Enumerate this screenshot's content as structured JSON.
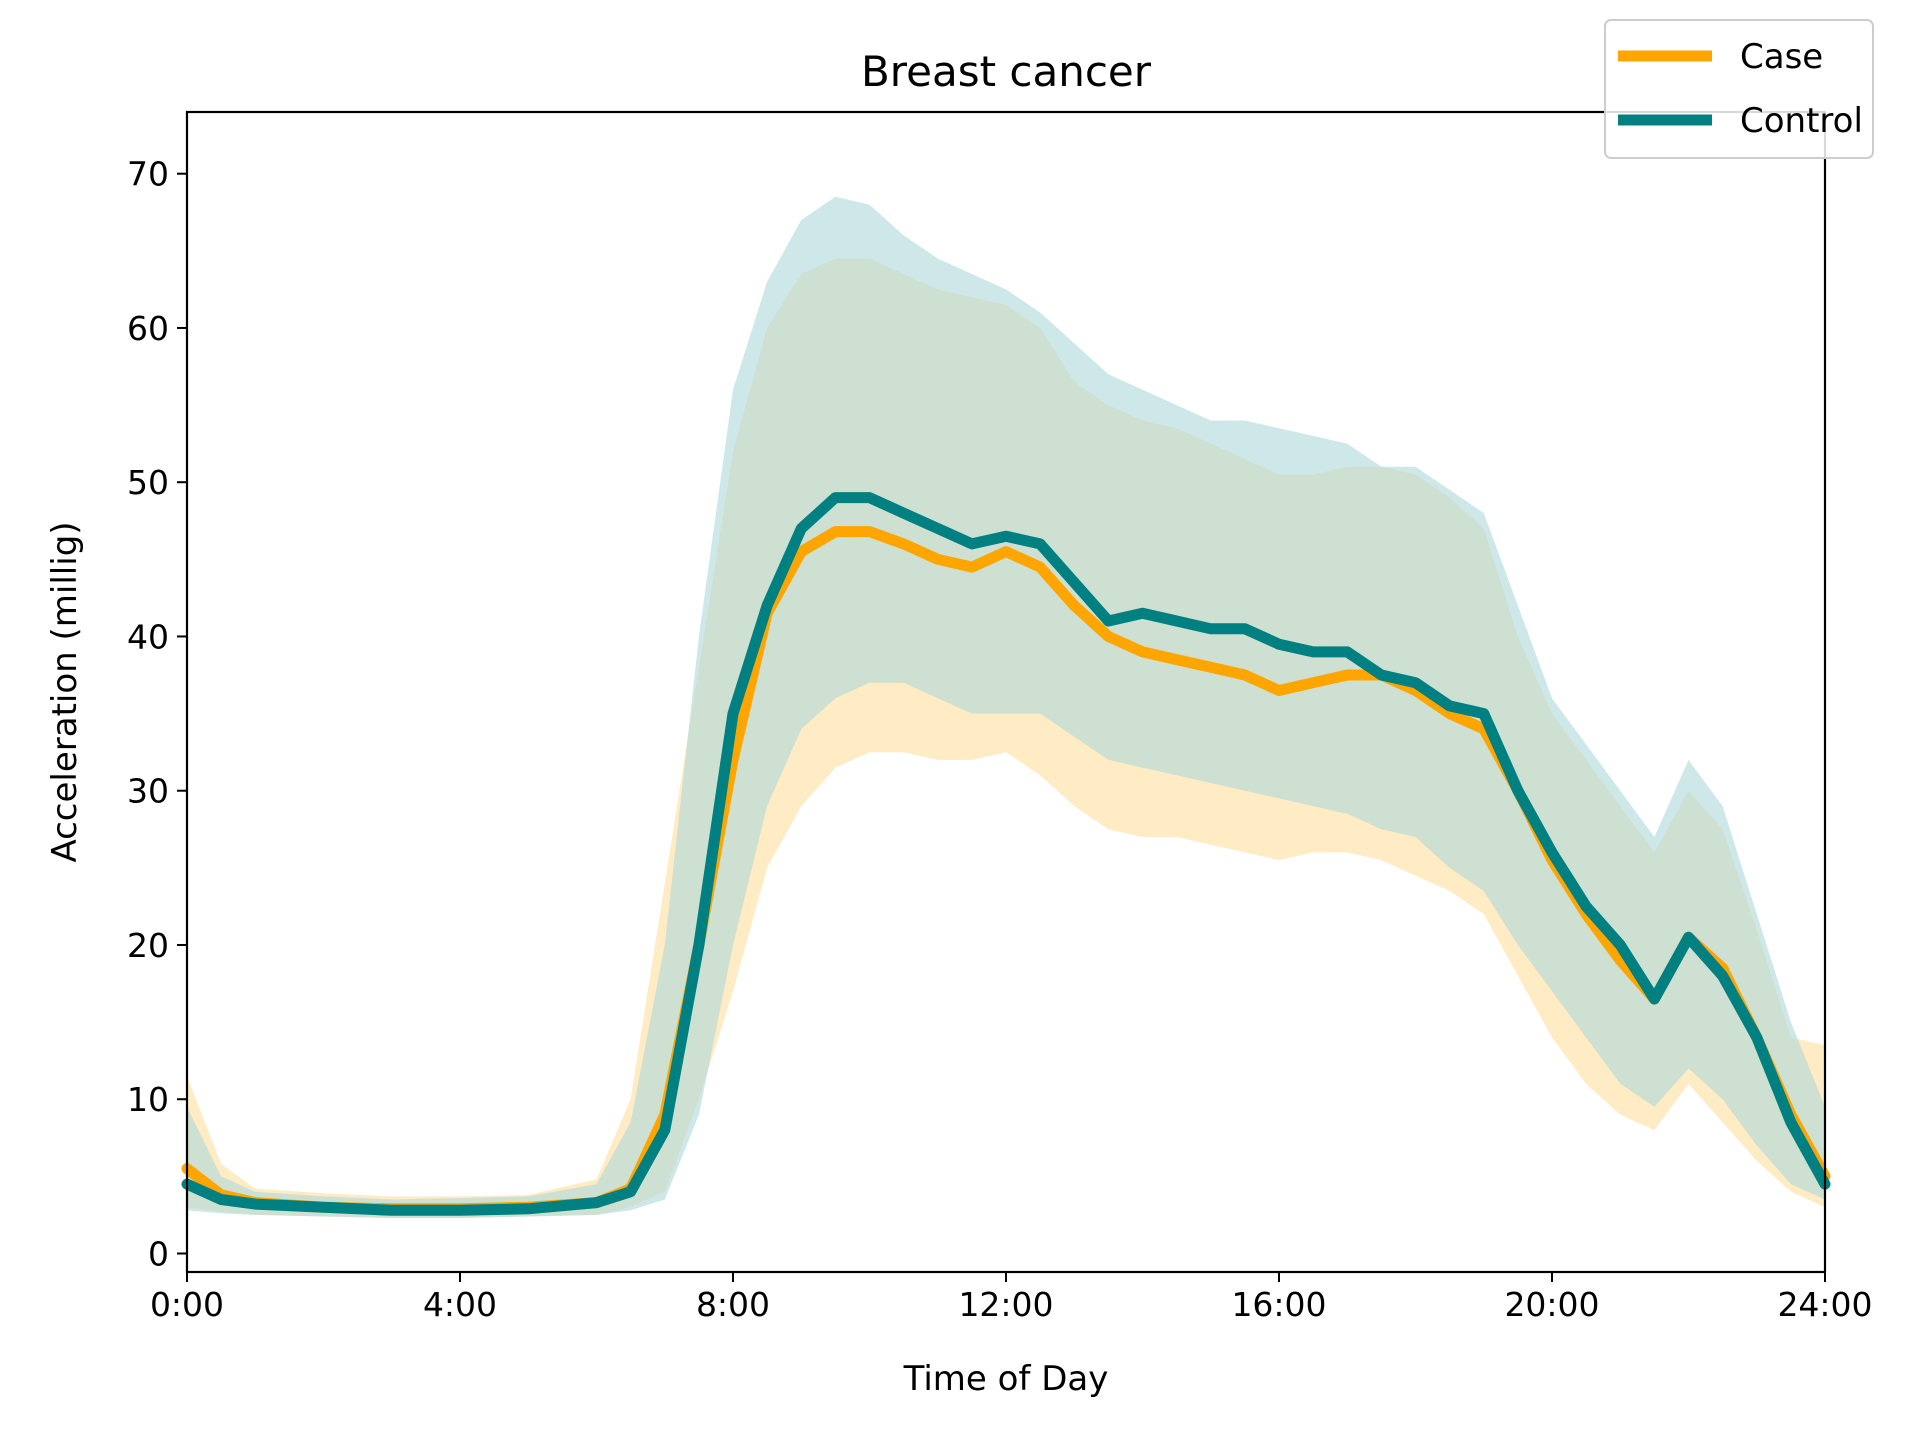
{
  "chart_data": {
    "type": "line",
    "title": "Breast cancer",
    "xlabel": "Time of Day",
    "ylabel": "Acceleration (millig)",
    "xlim": [
      0,
      24
    ],
    "ylim": [
      -1.2,
      74
    ],
    "x_ticks": [
      {
        "value": 0,
        "label": "0:00"
      },
      {
        "value": 4,
        "label": "4:00"
      },
      {
        "value": 8,
        "label": "8:00"
      },
      {
        "value": 12,
        "label": "12:00"
      },
      {
        "value": 16,
        "label": "16:00"
      },
      {
        "value": 20,
        "label": "20:00"
      },
      {
        "value": 24,
        "label": "24:00"
      }
    ],
    "y_ticks": [
      0,
      10,
      20,
      30,
      40,
      50,
      60,
      70
    ],
    "grid": false,
    "legend_position": "top-right",
    "x_hours": [
      0,
      0.5,
      1,
      2,
      3,
      4,
      5,
      6,
      6.5,
      7,
      7.5,
      8,
      8.5,
      9,
      9.5,
      10,
      10.5,
      11,
      11.5,
      12,
      12.5,
      13,
      13.5,
      14,
      14.5,
      15,
      15.5,
      16,
      16.5,
      17,
      17.5,
      18,
      18.5,
      19,
      19.5,
      20,
      20.5,
      21,
      21.5,
      22,
      22.5,
      23,
      23.5,
      24
    ],
    "series": [
      {
        "name": "Case",
        "color": "#FFA500",
        "band_color": "#FFE4B0",
        "mean": [
          5.5,
          3.8,
          3.3,
          3.0,
          2.9,
          2.9,
          3.0,
          3.3,
          4.2,
          9.0,
          20.0,
          32.0,
          41.5,
          45.5,
          46.8,
          46.8,
          46.0,
          45.0,
          44.5,
          45.5,
          44.5,
          42.0,
          40.0,
          39.0,
          38.5,
          38.0,
          37.5,
          36.5,
          37.0,
          37.5,
          37.5,
          36.5,
          35.0,
          34.0,
          30.0,
          25.5,
          22.0,
          19.0,
          16.5,
          20.5,
          18.5,
          14.0,
          9.0,
          5.0
        ],
        "upper": [
          11.5,
          5.8,
          4.2,
          3.9,
          3.7,
          3.7,
          3.8,
          4.8,
          10.0,
          24.0,
          38.0,
          52.0,
          60.0,
          63.5,
          64.5,
          64.5,
          63.5,
          62.5,
          62.0,
          61.5,
          60.0,
          56.5,
          55.0,
          54.0,
          53.5,
          52.5,
          51.5,
          50.5,
          50.5,
          51.0,
          51.0,
          50.5,
          49.0,
          47.0,
          40.0,
          35.0,
          32.0,
          29.0,
          26.0,
          30.0,
          27.5,
          21.0,
          14.0,
          13.5
        ],
        "lower": [
          3.0,
          2.7,
          2.5,
          2.4,
          2.3,
          2.3,
          2.4,
          2.5,
          3.0,
          4.0,
          10.0,
          17.0,
          25.0,
          29.0,
          31.5,
          32.5,
          32.5,
          32.0,
          32.0,
          32.5,
          31.0,
          29.0,
          27.5,
          27.0,
          27.0,
          26.5,
          26.0,
          25.5,
          26.0,
          26.0,
          25.5,
          24.5,
          23.5,
          22.0,
          18.0,
          14.0,
          11.0,
          9.0,
          8.0,
          11.0,
          8.5,
          6.0,
          4.0,
          3.0
        ]
      },
      {
        "name": "Control",
        "color": "#008080",
        "band_color": "#AED8DA",
        "mean": [
          4.5,
          3.5,
          3.2,
          3.0,
          2.8,
          2.8,
          2.9,
          3.3,
          4.0,
          8.0,
          20.0,
          35.0,
          42.0,
          47.0,
          49.0,
          49.0,
          48.0,
          47.0,
          46.0,
          46.5,
          46.0,
          43.5,
          41.0,
          41.5,
          41.0,
          40.5,
          40.5,
          39.5,
          39.0,
          39.0,
          37.5,
          37.0,
          35.5,
          35.0,
          30.0,
          26.0,
          22.5,
          20.0,
          16.5,
          20.5,
          18.0,
          14.0,
          8.5,
          4.5
        ],
        "upper": [
          9.5,
          5.0,
          4.0,
          3.7,
          3.5,
          3.6,
          3.7,
          4.5,
          8.5,
          20.0,
          40.0,
          56.0,
          63.0,
          67.0,
          68.5,
          68.0,
          66.0,
          64.5,
          63.5,
          62.5,
          61.0,
          59.0,
          57.0,
          56.0,
          55.0,
          54.0,
          54.0,
          53.5,
          53.0,
          52.5,
          51.0,
          51.0,
          49.5,
          48.0,
          42.0,
          36.0,
          33.0,
          30.0,
          27.0,
          32.0,
          29.0,
          22.0,
          15.0,
          9.5
        ],
        "lower": [
          2.8,
          2.6,
          2.5,
          2.4,
          2.3,
          2.3,
          2.4,
          2.5,
          2.8,
          3.5,
          9.0,
          20.0,
          29.0,
          34.0,
          36.0,
          37.0,
          37.0,
          36.0,
          35.0,
          35.0,
          35.0,
          33.5,
          32.0,
          31.5,
          31.0,
          30.5,
          30.0,
          29.5,
          29.0,
          28.5,
          27.5,
          27.0,
          25.0,
          23.5,
          20.0,
          17.0,
          14.0,
          11.0,
          9.5,
          12.0,
          10.0,
          7.0,
          4.5,
          3.5
        ]
      }
    ]
  }
}
